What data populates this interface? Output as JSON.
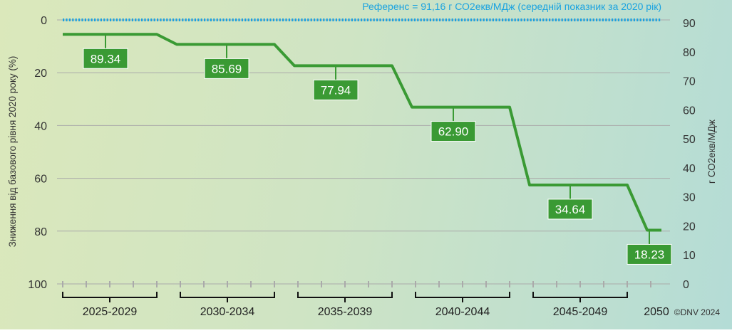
{
  "chart_data": {
    "type": "line",
    "subtype": "step",
    "categories": [
      "2025-2029",
      "2030-2034",
      "2035-2039",
      "2040-2044",
      "2045-2049",
      "2050"
    ],
    "series": [
      {
        "values": [
          89.34,
          85.69,
          77.94,
          62.9,
          34.64,
          18.23
        ],
        "color": "#3a9a34"
      }
    ],
    "data_labels": [
      "89.34",
      "85.69",
      "77.94",
      "62.90",
      "34.64",
      "18.23"
    ],
    "reference": {
      "value": 91.16,
      "label": "Референс = 91,16 г СО2екв/МДж (середній показник за 2020 рік)",
      "color": "#1aa3e0",
      "style": "dotted"
    },
    "ylabel_left": "Зниження від базового рівня 2020 року (%)",
    "ylim_left": [
      0,
      100
    ],
    "yticks_left": [
      "0",
      "20",
      "40",
      "60",
      "80",
      "100"
    ],
    "left_axis_inverted": true,
    "ylabel_right": "г СО2екв/МДж",
    "ylim_right": [
      0,
      90
    ],
    "yticks_right": [
      "0",
      "10",
      "20",
      "30",
      "40",
      "50",
      "60",
      "70",
      "80",
      "90"
    ],
    "grid": true,
    "year_ticks": 26,
    "copyright": "©DNV 2024"
  }
}
